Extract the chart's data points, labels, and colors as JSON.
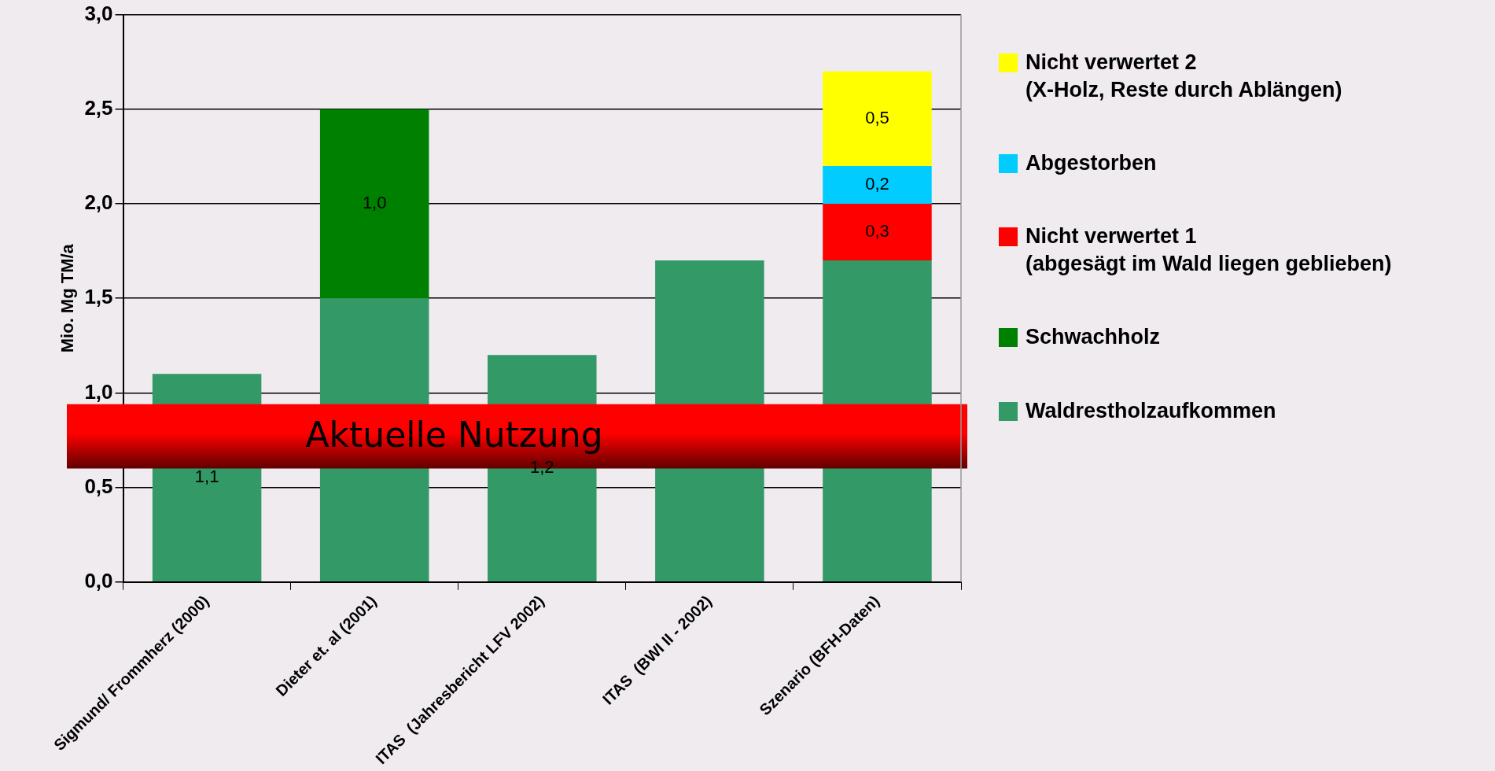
{
  "chart_data": {
    "type": "bar",
    "stacked": true,
    "ylabel": "Mio. Mg TM/a",
    "categories": [
      "Sigmund/ Frommherz (2000)",
      "Dieter et. al (2001)",
      "ITAS  (Jahresbericht LFV 2002)",
      "ITAS  (BWI II - 2002)",
      "Szenario (BFH-Daten)"
    ],
    "series": [
      {
        "name": "Waldrestholzaufkommen",
        "color": "#339966",
        "values": [
          1.1,
          1.5,
          1.2,
          1.7,
          1.7
        ],
        "value_labels": [
          "1,1",
          null,
          "1,2",
          null,
          null
        ]
      },
      {
        "name": "Schwachholz",
        "color": "#008000",
        "values": [
          null,
          1.0,
          null,
          null,
          null
        ],
        "value_labels": [
          null,
          "1,0",
          null,
          null,
          null
        ]
      },
      {
        "name": "Nicht verwertet 1\n(abgesägt im Wald liegen geblieben)",
        "color": "#ff0000",
        "values": [
          null,
          null,
          null,
          null,
          0.3
        ],
        "value_labels": [
          null,
          null,
          null,
          null,
          "0,3"
        ]
      },
      {
        "name": "Abgestorben",
        "color": "#00ccff",
        "values": [
          null,
          null,
          null,
          null,
          0.2
        ],
        "value_labels": [
          null,
          null,
          null,
          null,
          "0,2"
        ]
      },
      {
        "name": "Nicht verwertet 2\n(X-Holz, Reste durch Ablängen)",
        "color": "#ffff00",
        "values": [
          null,
          null,
          null,
          null,
          0.5
        ],
        "value_labels": [
          null,
          null,
          null,
          null,
          "0,5"
        ]
      }
    ],
    "ylim": [
      0,
      3
    ],
    "yticks": [
      {
        "value": 0,
        "label": "0,0"
      },
      {
        "value": 0.5,
        "label": "0,5"
      },
      {
        "value": 1,
        "label": "1,0"
      },
      {
        "value": 1.5,
        "label": "1,5"
      },
      {
        "value": 2,
        "label": "2,0"
      },
      {
        "value": 2.5,
        "label": "2,5"
      },
      {
        "value": 3,
        "label": "3,0"
      }
    ],
    "bands": [
      {
        "axis": "y",
        "from": 0.6,
        "to": 0.94,
        "label": "Aktuelle Nutzung",
        "color": "#ff0000"
      }
    ],
    "grid": "y",
    "legend": "right"
  }
}
